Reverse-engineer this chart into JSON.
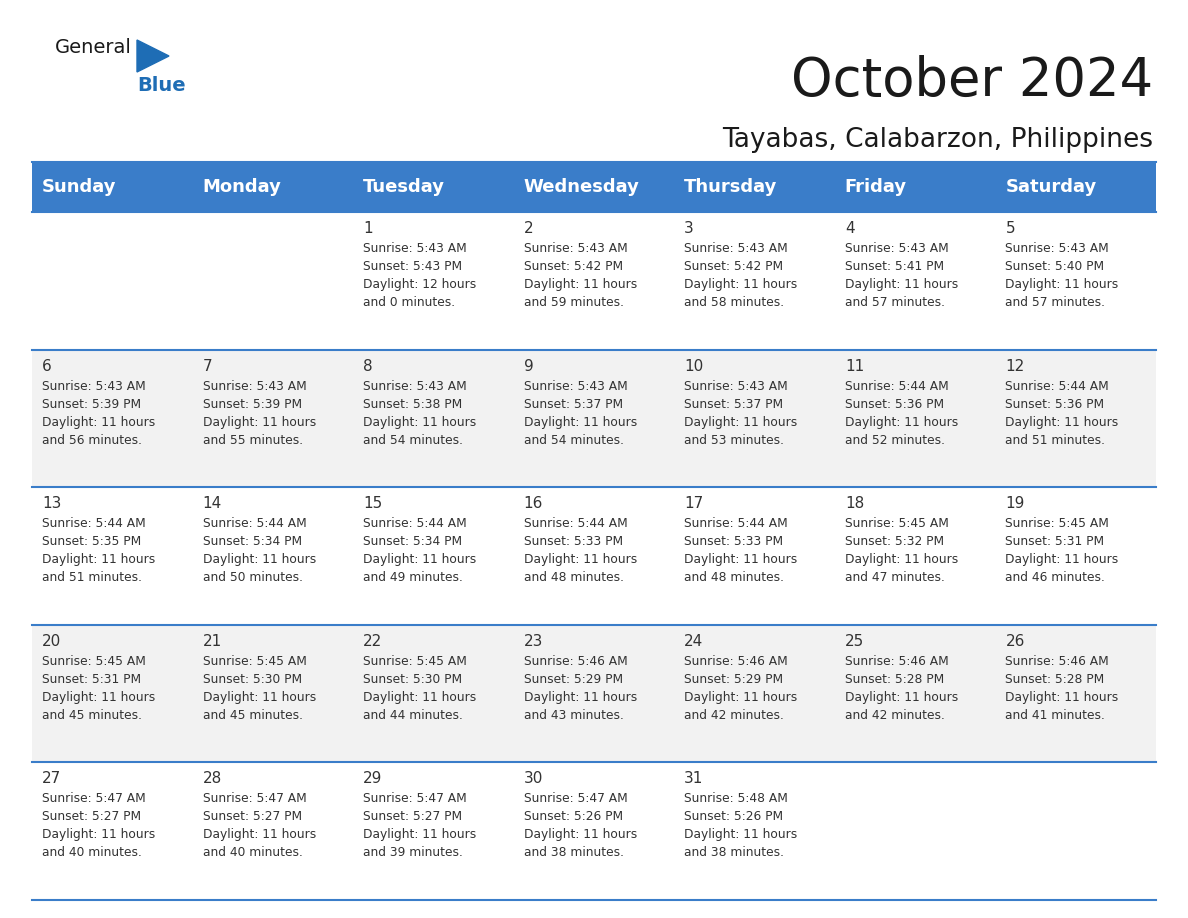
{
  "title": "October 2024",
  "subtitle": "Tayabas, Calabarzon, Philippines",
  "header_color": "#3A7DC9",
  "header_text_color": "#FFFFFF",
  "background_color": "#FFFFFF",
  "alt_row_color": "#F2F2F2",
  "days_of_week": [
    "Sunday",
    "Monday",
    "Tuesday",
    "Wednesday",
    "Thursday",
    "Friday",
    "Saturday"
  ],
  "weeks": [
    [
      {
        "day": "",
        "sunrise": "",
        "sunset": "",
        "daylight": ""
      },
      {
        "day": "",
        "sunrise": "",
        "sunset": "",
        "daylight": ""
      },
      {
        "day": "1",
        "sunrise": "Sunrise: 5:43 AM",
        "sunset": "Sunset: 5:43 PM",
        "daylight": "Daylight: 12 hours\nand 0 minutes."
      },
      {
        "day": "2",
        "sunrise": "Sunrise: 5:43 AM",
        "sunset": "Sunset: 5:42 PM",
        "daylight": "Daylight: 11 hours\nand 59 minutes."
      },
      {
        "day": "3",
        "sunrise": "Sunrise: 5:43 AM",
        "sunset": "Sunset: 5:42 PM",
        "daylight": "Daylight: 11 hours\nand 58 minutes."
      },
      {
        "day": "4",
        "sunrise": "Sunrise: 5:43 AM",
        "sunset": "Sunset: 5:41 PM",
        "daylight": "Daylight: 11 hours\nand 57 minutes."
      },
      {
        "day": "5",
        "sunrise": "Sunrise: 5:43 AM",
        "sunset": "Sunset: 5:40 PM",
        "daylight": "Daylight: 11 hours\nand 57 minutes."
      }
    ],
    [
      {
        "day": "6",
        "sunrise": "Sunrise: 5:43 AM",
        "sunset": "Sunset: 5:39 PM",
        "daylight": "Daylight: 11 hours\nand 56 minutes."
      },
      {
        "day": "7",
        "sunrise": "Sunrise: 5:43 AM",
        "sunset": "Sunset: 5:39 PM",
        "daylight": "Daylight: 11 hours\nand 55 minutes."
      },
      {
        "day": "8",
        "sunrise": "Sunrise: 5:43 AM",
        "sunset": "Sunset: 5:38 PM",
        "daylight": "Daylight: 11 hours\nand 54 minutes."
      },
      {
        "day": "9",
        "sunrise": "Sunrise: 5:43 AM",
        "sunset": "Sunset: 5:37 PM",
        "daylight": "Daylight: 11 hours\nand 54 minutes."
      },
      {
        "day": "10",
        "sunrise": "Sunrise: 5:43 AM",
        "sunset": "Sunset: 5:37 PM",
        "daylight": "Daylight: 11 hours\nand 53 minutes."
      },
      {
        "day": "11",
        "sunrise": "Sunrise: 5:44 AM",
        "sunset": "Sunset: 5:36 PM",
        "daylight": "Daylight: 11 hours\nand 52 minutes."
      },
      {
        "day": "12",
        "sunrise": "Sunrise: 5:44 AM",
        "sunset": "Sunset: 5:36 PM",
        "daylight": "Daylight: 11 hours\nand 51 minutes."
      }
    ],
    [
      {
        "day": "13",
        "sunrise": "Sunrise: 5:44 AM",
        "sunset": "Sunset: 5:35 PM",
        "daylight": "Daylight: 11 hours\nand 51 minutes."
      },
      {
        "day": "14",
        "sunrise": "Sunrise: 5:44 AM",
        "sunset": "Sunset: 5:34 PM",
        "daylight": "Daylight: 11 hours\nand 50 minutes."
      },
      {
        "day": "15",
        "sunrise": "Sunrise: 5:44 AM",
        "sunset": "Sunset: 5:34 PM",
        "daylight": "Daylight: 11 hours\nand 49 minutes."
      },
      {
        "day": "16",
        "sunrise": "Sunrise: 5:44 AM",
        "sunset": "Sunset: 5:33 PM",
        "daylight": "Daylight: 11 hours\nand 48 minutes."
      },
      {
        "day": "17",
        "sunrise": "Sunrise: 5:44 AM",
        "sunset": "Sunset: 5:33 PM",
        "daylight": "Daylight: 11 hours\nand 48 minutes."
      },
      {
        "day": "18",
        "sunrise": "Sunrise: 5:45 AM",
        "sunset": "Sunset: 5:32 PM",
        "daylight": "Daylight: 11 hours\nand 47 minutes."
      },
      {
        "day": "19",
        "sunrise": "Sunrise: 5:45 AM",
        "sunset": "Sunset: 5:31 PM",
        "daylight": "Daylight: 11 hours\nand 46 minutes."
      }
    ],
    [
      {
        "day": "20",
        "sunrise": "Sunrise: 5:45 AM",
        "sunset": "Sunset: 5:31 PM",
        "daylight": "Daylight: 11 hours\nand 45 minutes."
      },
      {
        "day": "21",
        "sunrise": "Sunrise: 5:45 AM",
        "sunset": "Sunset: 5:30 PM",
        "daylight": "Daylight: 11 hours\nand 45 minutes."
      },
      {
        "day": "22",
        "sunrise": "Sunrise: 5:45 AM",
        "sunset": "Sunset: 5:30 PM",
        "daylight": "Daylight: 11 hours\nand 44 minutes."
      },
      {
        "day": "23",
        "sunrise": "Sunrise: 5:46 AM",
        "sunset": "Sunset: 5:29 PM",
        "daylight": "Daylight: 11 hours\nand 43 minutes."
      },
      {
        "day": "24",
        "sunrise": "Sunrise: 5:46 AM",
        "sunset": "Sunset: 5:29 PM",
        "daylight": "Daylight: 11 hours\nand 42 minutes."
      },
      {
        "day": "25",
        "sunrise": "Sunrise: 5:46 AM",
        "sunset": "Sunset: 5:28 PM",
        "daylight": "Daylight: 11 hours\nand 42 minutes."
      },
      {
        "day": "26",
        "sunrise": "Sunrise: 5:46 AM",
        "sunset": "Sunset: 5:28 PM",
        "daylight": "Daylight: 11 hours\nand 41 minutes."
      }
    ],
    [
      {
        "day": "27",
        "sunrise": "Sunrise: 5:47 AM",
        "sunset": "Sunset: 5:27 PM",
        "daylight": "Daylight: 11 hours\nand 40 minutes."
      },
      {
        "day": "28",
        "sunrise": "Sunrise: 5:47 AM",
        "sunset": "Sunset: 5:27 PM",
        "daylight": "Daylight: 11 hours\nand 40 minutes."
      },
      {
        "day": "29",
        "sunrise": "Sunrise: 5:47 AM",
        "sunset": "Sunset: 5:27 PM",
        "daylight": "Daylight: 11 hours\nand 39 minutes."
      },
      {
        "day": "30",
        "sunrise": "Sunrise: 5:47 AM",
        "sunset": "Sunset: 5:26 PM",
        "daylight": "Daylight: 11 hours\nand 38 minutes."
      },
      {
        "day": "31",
        "sunrise": "Sunrise: 5:48 AM",
        "sunset": "Sunset: 5:26 PM",
        "daylight": "Daylight: 11 hours\nand 38 minutes."
      },
      {
        "day": "",
        "sunrise": "",
        "sunset": "",
        "daylight": ""
      },
      {
        "day": "",
        "sunrise": "",
        "sunset": "",
        "daylight": ""
      }
    ]
  ],
  "logo_text_general": "General",
  "logo_text_blue": "Blue",
  "logo_triangle_color": "#1E6DB5",
  "text_color": "#1a1a1a",
  "cell_text_color": "#333333",
  "line_color": "#3A7DC9",
  "title_fontsize": 38,
  "subtitle_fontsize": 19,
  "header_fontsize": 13,
  "day_num_fontsize": 11,
  "cell_fontsize": 8.8
}
